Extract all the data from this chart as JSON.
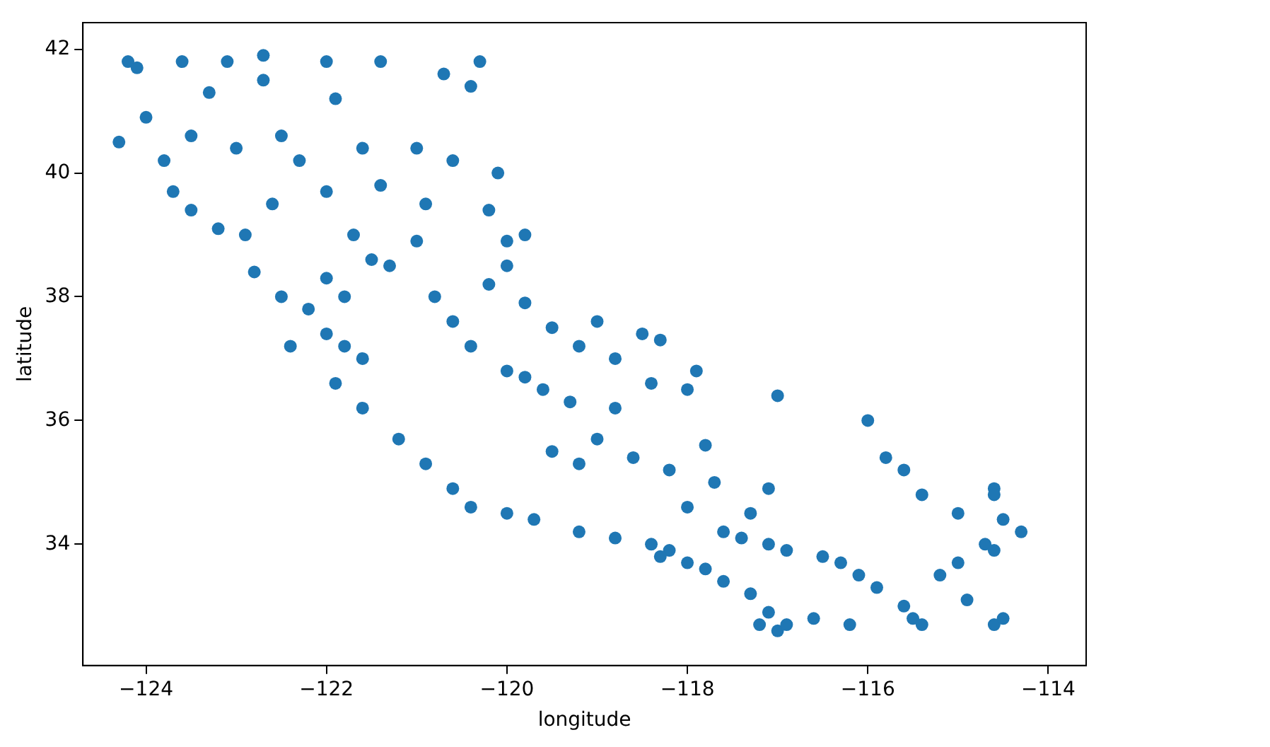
{
  "chart_data": {
    "type": "scatter",
    "xlabel": "longitude",
    "ylabel": "latitude",
    "xlim": [
      -124.7,
      -113.58
    ],
    "ylim": [
      32.04,
      42.43
    ],
    "xticks": [
      {
        "value": -124,
        "label": "−124"
      },
      {
        "value": -122,
        "label": "−122"
      },
      {
        "value": -120,
        "label": "−120"
      },
      {
        "value": -118,
        "label": "−118"
      },
      {
        "value": -116,
        "label": "−116"
      },
      {
        "value": -114,
        "label": "−114"
      }
    ],
    "yticks": [
      34,
      36,
      38,
      40,
      42
    ],
    "grid": false,
    "marker": "circle",
    "series": [
      {
        "color": "#1f77b4",
        "x": [
          -124.2,
          -124.1,
          -123.6,
          -123.1,
          -122.7,
          -122.0,
          -121.4,
          -120.7,
          -120.3,
          -120.4,
          -124.3,
          -124.0,
          -123.8,
          -123.5,
          -123.0,
          -122.5,
          -122.3,
          -121.6,
          -121.0,
          -120.6,
          -120.1,
          -121.9,
          -123.3,
          -122.7,
          -123.5,
          -123.2,
          -122.9,
          -123.7,
          -122.6,
          -122.0,
          -121.4,
          -120.9,
          -120.2,
          -120.0,
          -119.8,
          -122.8,
          -122.5,
          -122.2,
          -122.0,
          -121.8,
          -121.6,
          -121.3,
          -121.0,
          -121.5,
          -121.7,
          -120.8,
          -120.6,
          -120.4,
          -120.0,
          -119.8,
          -119.6,
          -119.3,
          -119.0,
          -118.8,
          -122.4,
          -121.9,
          -121.6,
          -121.2,
          -120.9,
          -120.6,
          -120.4,
          -120.0,
          -119.7,
          -119.2,
          -118.8,
          -118.4,
          -118.2,
          -118.3,
          -118.0,
          -117.8,
          -117.6,
          -117.3,
          -117.1,
          -117.0,
          -116.9,
          -117.2,
          -117.4,
          -117.1,
          -116.9,
          -117.6,
          -116.5,
          -116.3,
          -116.1,
          -115.9,
          -115.5,
          -115.6,
          -115.4,
          -116.2,
          -116.6,
          -117.0,
          -116.0,
          -115.8,
          -115.6,
          -115.4,
          -114.6,
          -114.6,
          -114.3,
          -114.5,
          -115.0,
          -114.7,
          -114.6,
          -115.2,
          -114.9,
          -114.6,
          -114.5,
          -115.0,
          -118.4,
          -118.8,
          -119.0,
          -118.5,
          -118.3,
          -117.9,
          -118.0,
          -117.8,
          -118.2,
          -118.6,
          -119.2,
          -119.5,
          -119.2,
          -119.5,
          -119.8,
          -120.2,
          -120.0,
          -121.8,
          -122.0,
          -117.7,
          -118.0,
          -117.1,
          -117.3
        ],
        "values": [
          41.8,
          41.7,
          41.8,
          41.8,
          41.9,
          41.8,
          41.8,
          41.6,
          41.8,
          41.4,
          40.5,
          40.9,
          40.2,
          40.6,
          40.4,
          40.6,
          40.2,
          40.4,
          40.4,
          40.2,
          40.0,
          41.2,
          41.3,
          41.5,
          39.4,
          39.1,
          39.0,
          39.7,
          39.5,
          39.7,
          39.8,
          39.5,
          39.4,
          38.9,
          39.0,
          38.4,
          38.0,
          37.8,
          37.4,
          37.2,
          37.0,
          38.5,
          38.9,
          38.6,
          39.0,
          38.0,
          37.6,
          37.2,
          36.8,
          36.7,
          36.5,
          36.3,
          35.7,
          36.2,
          37.2,
          36.6,
          36.2,
          35.7,
          35.3,
          34.9,
          34.6,
          34.5,
          34.4,
          34.2,
          34.1,
          34.0,
          33.9,
          33.8,
          33.7,
          33.6,
          33.4,
          33.2,
          32.9,
          32.6,
          32.7,
          32.7,
          34.1,
          34.0,
          33.9,
          34.2,
          33.8,
          33.7,
          33.5,
          33.3,
          32.8,
          33.0,
          32.7,
          32.7,
          32.8,
          36.4,
          36.0,
          35.4,
          35.2,
          34.8,
          34.9,
          34.8,
          34.2,
          34.4,
          34.5,
          34.0,
          33.9,
          33.5,
          33.1,
          32.7,
          32.8,
          33.7,
          36.6,
          37.0,
          37.6,
          37.4,
          37.3,
          36.8,
          36.5,
          35.6,
          35.2,
          35.4,
          35.3,
          35.5,
          37.2,
          37.5,
          37.9,
          38.2,
          38.5,
          38.0,
          38.3,
          35.0,
          34.6,
          34.9,
          34.5
        ]
      }
    ]
  }
}
